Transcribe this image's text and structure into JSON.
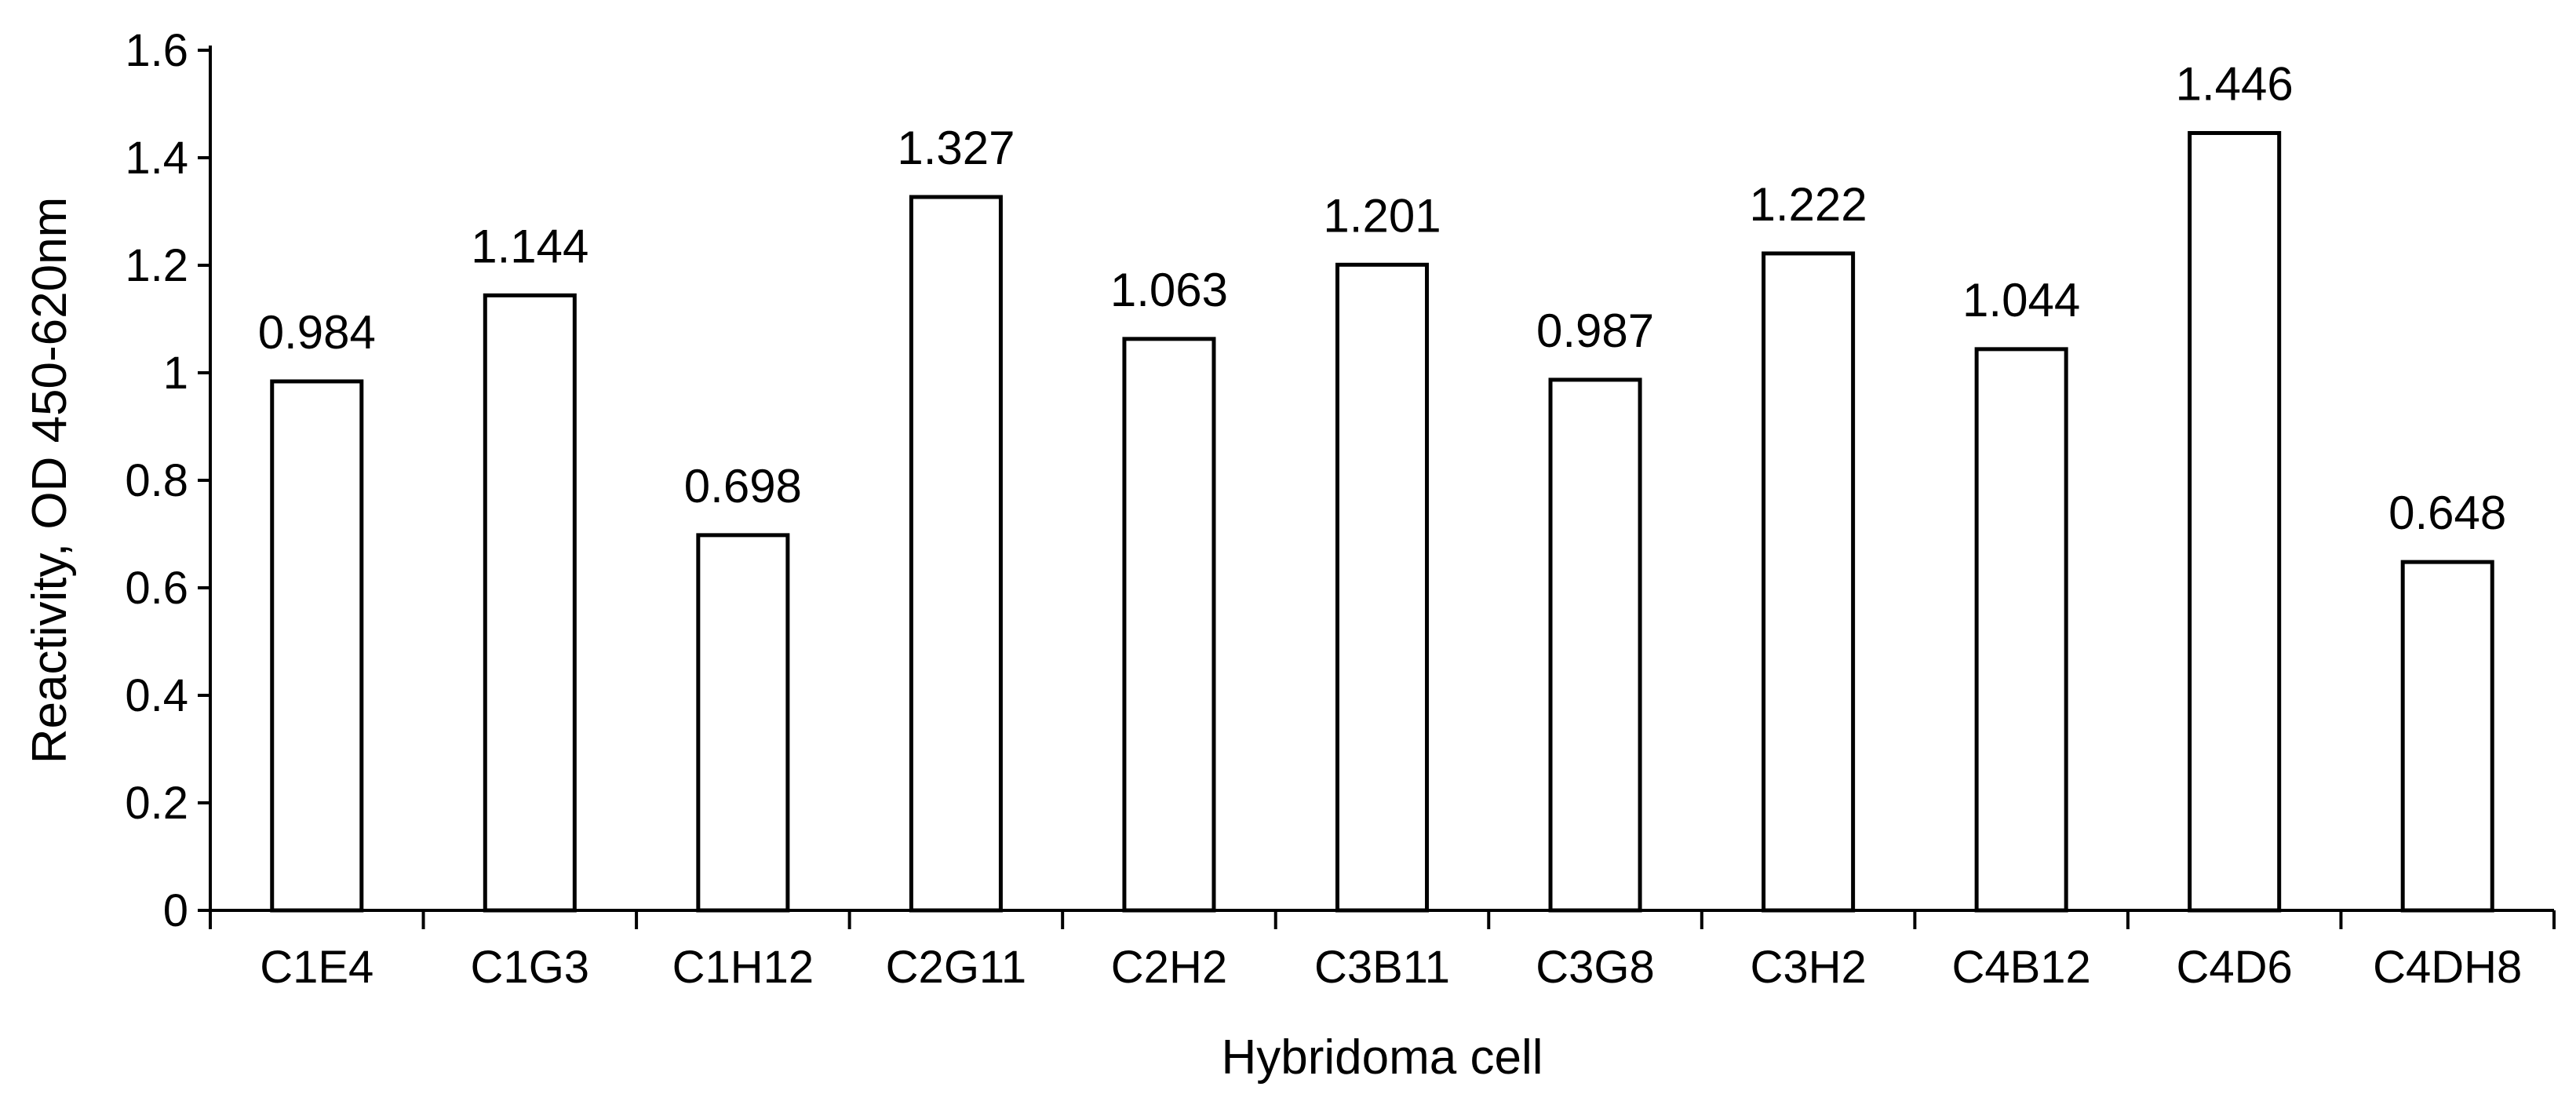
{
  "chart_data": {
    "type": "bar",
    "title": "",
    "xlabel": "Hybridoma cell",
    "ylabel": "Reactivity, OD 450-620nm",
    "categories": [
      "C1E4",
      "C1G3",
      "C1H12",
      "C2G11",
      "C2H2",
      "C3B11",
      "C3G8",
      "C3H2",
      "C4B12",
      "C4D6",
      "C4DH8"
    ],
    "values": [
      0.984,
      1.144,
      0.698,
      1.327,
      1.063,
      1.201,
      0.987,
      1.222,
      1.044,
      1.446,
      0.648
    ],
    "value_labels": [
      "0.984",
      "1.144",
      "0.698",
      "1.327",
      "1.063",
      "1.201",
      "0.987",
      "1.222",
      "1.044",
      "1.446",
      "0.648"
    ],
    "ylim": [
      0,
      1.6
    ],
    "yticks": [
      0,
      0.2,
      0.4,
      0.6,
      0.8,
      1,
      1.2,
      1.4,
      1.6
    ],
    "ytick_labels": [
      "0",
      "0.2",
      "0.4",
      "0.6",
      "0.8",
      "1",
      "1.2",
      "1.4",
      "1.6"
    ],
    "grid": false,
    "legend": "none",
    "bar_fill": "#ffffff",
    "bar_stroke": "#000000"
  }
}
